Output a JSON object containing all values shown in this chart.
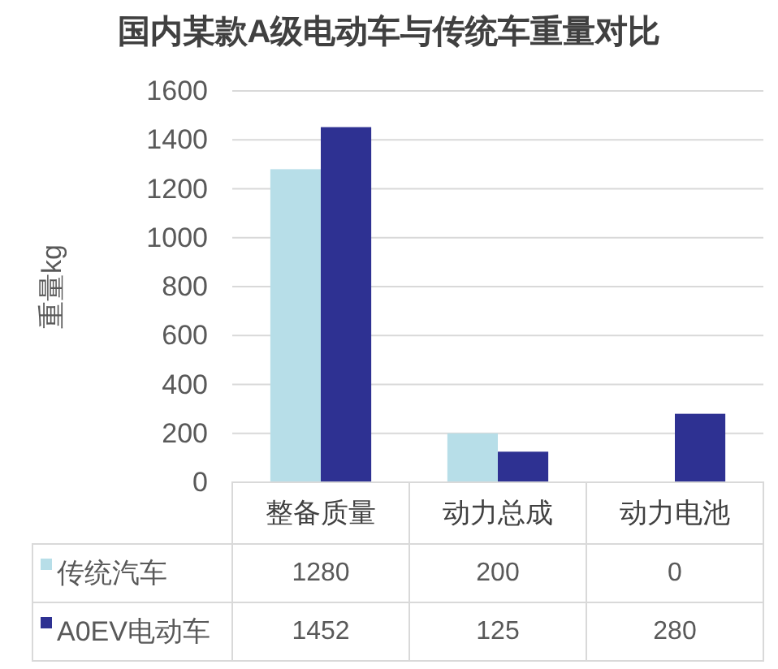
{
  "chart_data": {
    "type": "bar",
    "title": "国内某款A级电动车与传统车重量对比",
    "ylabel": "重量kg",
    "categories": [
      "整备质量",
      "动力总成",
      "动力电池"
    ],
    "series": [
      {
        "name": "传统汽车",
        "color": "#b7dee8",
        "values": [
          1280,
          200,
          0
        ]
      },
      {
        "name": "A0EV电动车",
        "color": "#2e3192",
        "values": [
          1452,
          125,
          280
        ]
      }
    ],
    "ylim": [
      0,
      1600
    ],
    "yticks": [
      0,
      200,
      400,
      600,
      800,
      1000,
      1200,
      1400,
      1600
    ],
    "grid": "y",
    "legend": "bottom",
    "data_labels": true
  }
}
